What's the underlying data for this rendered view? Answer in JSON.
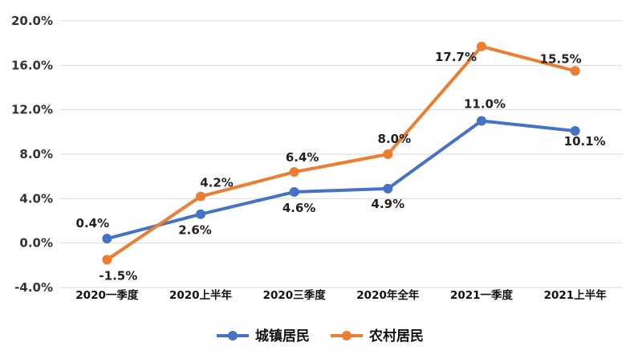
{
  "chart_data": {
    "type": "line",
    "categories": [
      "2020一季度",
      "2020上半年",
      "2020三季度",
      "2020年全年",
      "2021一季度",
      "2021上半年"
    ],
    "series": [
      {
        "name": "城镇居民",
        "color": "#4472C4",
        "values": [
          0.4,
          2.6,
          4.6,
          4.9,
          11.0,
          10.1
        ],
        "labels": [
          "0.4%",
          "2.6%",
          "4.6%",
          "4.9%",
          "11.0%",
          "10.1%"
        ]
      },
      {
        "name": "农村居民",
        "color": "#ED7D31",
        "values": [
          -1.5,
          4.2,
          6.4,
          8.0,
          17.7,
          15.5
        ],
        "labels": [
          "-1.5%",
          "4.2%",
          "6.4%",
          "8.0%",
          "17.7%",
          "15.5%"
        ]
      }
    ],
    "ylim": [
      -4.0,
      20.0
    ],
    "yticks": [
      -4.0,
      0.0,
      4.0,
      8.0,
      12.0,
      16.0,
      20.0
    ],
    "ytick_labels": [
      "-4.0%",
      "0.0%",
      "4.0%",
      "8.0%",
      "12.0%",
      "16.0%",
      "20.0%"
    ],
    "grid": true,
    "legend_position": "bottom"
  }
}
